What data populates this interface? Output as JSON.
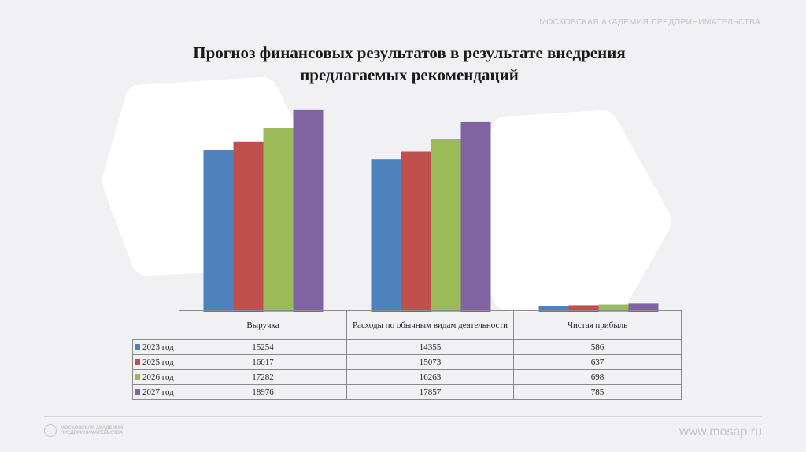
{
  "header": {
    "org": "МОСКОВСКАЯ АКАДЕМИЯ ПРЕДПРИНИМАТЕЛЬСТВА"
  },
  "slide": {
    "title_line1": "Прогноз финансовых результатов в результате внедрения",
    "title_line2": "предлагаемых рекомендаций"
  },
  "footer": {
    "logo_line1": "МОСКОВСКАЯ АКАДЕМИЯ",
    "logo_line2": "ПРЕДПРИНИМАТЕЛЬСТВА",
    "url": "www.mosap.ru"
  },
  "chart_data": {
    "type": "bar",
    "title": "",
    "categories": [
      "Выручка",
      "Расходы по обычным видам деятельности",
      "Чистая прибыль"
    ],
    "series": [
      {
        "name": "2023 год",
        "color": "#4f81bd",
        "values": [
          15254,
          14355,
          586
        ]
      },
      {
        "name": "2025 год",
        "color": "#c0504d",
        "values": [
          16017,
          15073,
          637
        ]
      },
      {
        "name": "2026 год",
        "color": "#9bbb59",
        "values": [
          17282,
          16263,
          698
        ]
      },
      {
        "name": "2027 год",
        "color": "#8064a2",
        "values": [
          18976,
          17857,
          785
        ]
      }
    ],
    "ylim": [
      0,
      20000
    ],
    "grid": false,
    "legend": "data-table"
  }
}
